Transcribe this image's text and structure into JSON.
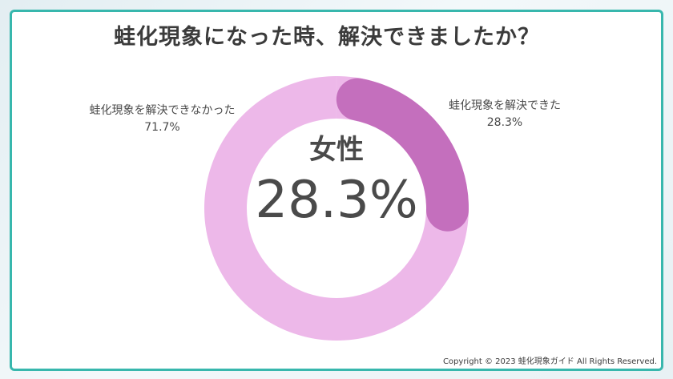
{
  "title": "蛙化現象になった時、解決できましたか？",
  "center": {
    "group": "女性",
    "value_text": "28.3%"
  },
  "labels": {
    "left_name": "蛙化現象を解決できなかった",
    "left_value": "71.7%",
    "right_name": "蛙化現象を解決できた",
    "right_value": "28.3%"
  },
  "copyright": "Copyright © 2023 蛙化現象ガイド All Rights Reserved.",
  "colors": {
    "frame_border": "#38b7ad",
    "solved": "#c46fbd",
    "unsolved": "#edb8e9",
    "text": "#4a4a4a"
  },
  "chart_data": {
    "type": "pie",
    "title": "蛙化現象になった時、解決できましたか？",
    "subtitle": "女性",
    "categories": [
      "蛙化現象を解決できた",
      "蛙化現象を解決できなかった"
    ],
    "values": [
      28.3,
      71.7
    ],
    "unit": "%",
    "donut": true
  }
}
